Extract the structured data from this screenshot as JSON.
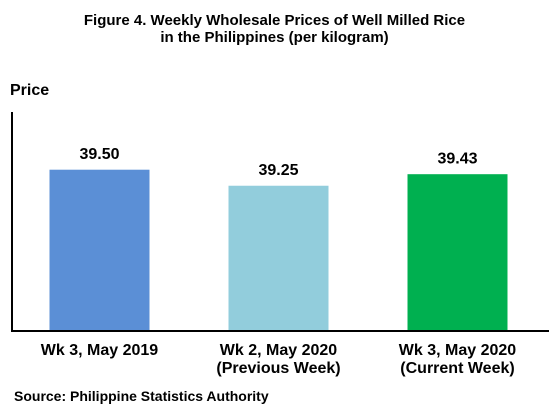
{
  "chart_data": {
    "type": "bar",
    "title": "Figure 4. Weekly Wholesale Prices of Well Milled Rice\nin the Philippines (per kilogram)",
    "y_label": "Price",
    "categories": [
      "Wk 3, May 2019",
      "Wk 2, May 2020\n(Previous Week)",
      "Wk 3, May 2020\n(Current Week)"
    ],
    "values": [
      39.5,
      39.25,
      39.43
    ],
    "value_labels": [
      "39.50",
      "39.25",
      "39.43"
    ],
    "colors": [
      "#5b8fd6",
      "#92cddc",
      "#00b050"
    ],
    "ylim": [
      37,
      40.4
    ],
    "source": "Source: Philippine Statistics Authority"
  }
}
